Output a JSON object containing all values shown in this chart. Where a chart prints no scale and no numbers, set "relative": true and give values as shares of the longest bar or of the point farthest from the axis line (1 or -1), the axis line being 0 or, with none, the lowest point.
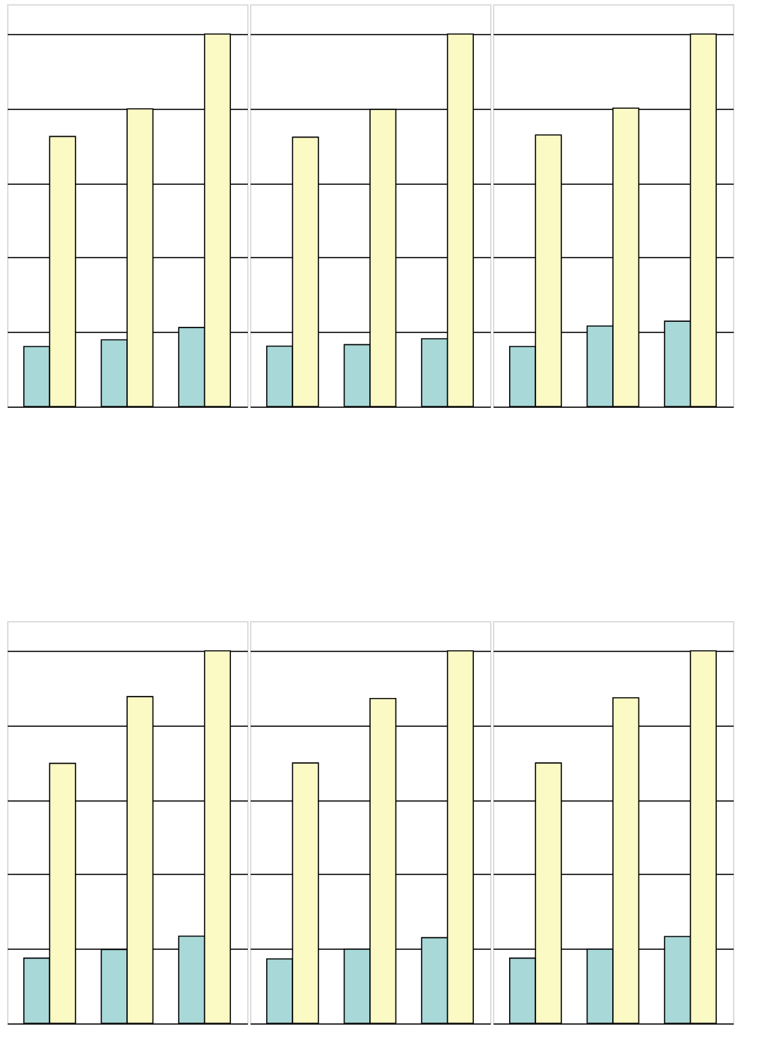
{
  "chart_data": [
    {
      "type": "bar",
      "relative": true,
      "categories": [
        null,
        null,
        null
      ],
      "grid": "y",
      "series": [
        {
          "color": "#a8d8d8",
          "values": [
            0.161,
            0.179,
            0.212
          ]
        },
        {
          "color": "#fbf9c4",
          "values": [
            0.725,
            0.799,
            1
          ]
        }
      ]
    },
    {
      "type": "bar",
      "relative": true,
      "categories": [
        null,
        null,
        null
      ],
      "grid": "y",
      "series": [
        {
          "color": "#a8d8d8",
          "values": [
            0.162,
            0.166,
            0.182
          ]
        },
        {
          "color": "#fbf9c4",
          "values": [
            0.723,
            0.798,
            1
          ]
        }
      ]
    },
    {
      "type": "bar",
      "relative": true,
      "categories": [
        null,
        null,
        null
      ],
      "grid": "y",
      "series": [
        {
          "color": "#a8d8d8",
          "values": [
            0.161,
            0.216,
            0.229
          ]
        },
        {
          "color": "#fbf9c4",
          "values": [
            0.729,
            0.801,
            1
          ]
        }
      ]
    },
    {
      "type": "bar",
      "relative": true,
      "categories": [
        null,
        null,
        null
      ],
      "grid": "y",
      "series": [
        {
          "color": "#a8d8d8",
          "values": [
            0.175,
            0.198,
            0.234
          ]
        },
        {
          "color": "#fbf9c4",
          "values": [
            0.698,
            0.877,
            1
          ]
        }
      ]
    },
    {
      "type": "bar",
      "relative": true,
      "categories": [
        null,
        null,
        null
      ],
      "grid": "y",
      "series": [
        {
          "color": "#a8d8d8",
          "values": [
            0.173,
            0.199,
            0.23
          ]
        },
        {
          "color": "#fbf9c4",
          "values": [
            0.699,
            0.872,
            1
          ]
        }
      ]
    },
    {
      "type": "bar",
      "relative": true,
      "categories": [
        null,
        null,
        null
      ],
      "grid": "y",
      "series": [
        {
          "color": "#a8d8d8",
          "values": [
            0.175,
            0.199,
            0.233
          ]
        },
        {
          "color": "#fbf9c4",
          "values": [
            0.699,
            0.874,
            1
          ]
        }
      ]
    }
  ]
}
